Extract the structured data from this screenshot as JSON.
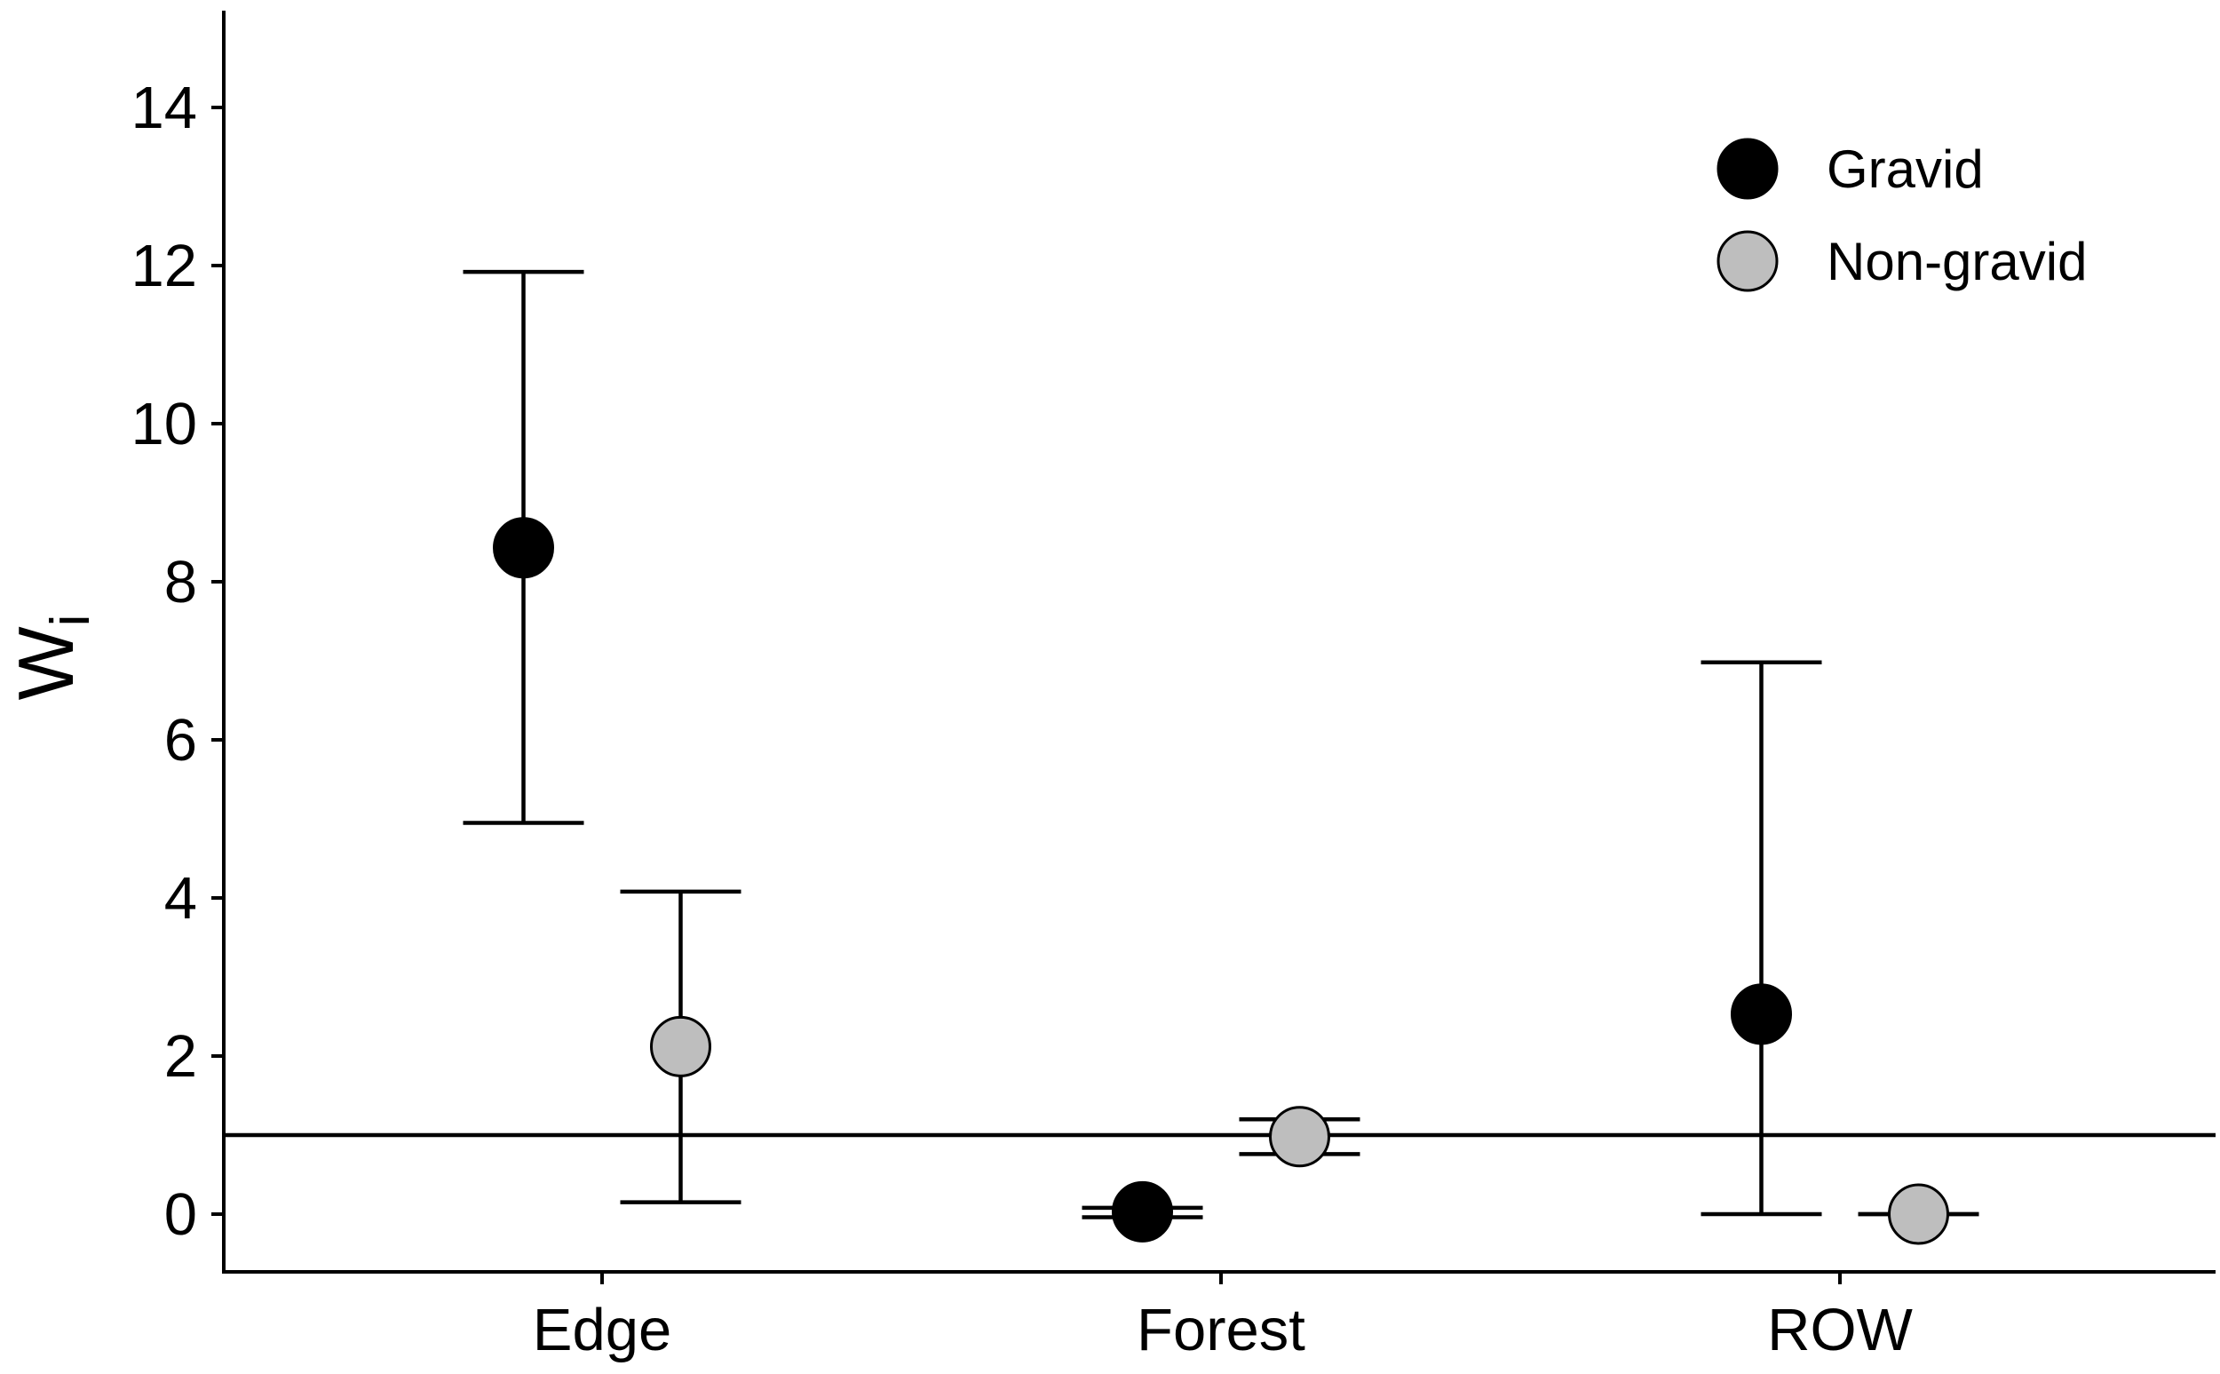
{
  "chart_data": {
    "type": "scatter",
    "title": "",
    "xlabel": "",
    "ylabel": {
      "main": "W",
      "sub": "i"
    },
    "categories": [
      "Edge",
      "Forest",
      "ROW"
    ],
    "ylim": [
      -0.75,
      15.2
    ],
    "yticks": [
      0,
      2,
      4,
      6,
      8,
      10,
      12,
      14
    ],
    "ytick_labels": [
      "0",
      "2",
      "4",
      "6",
      "8",
      "10",
      "12",
      "14"
    ],
    "reference_line": 1,
    "grid": false,
    "legend_position": "top-right",
    "series": [
      {
        "name": "Gravid",
        "color": "#000000",
        "points": [
          {
            "category": "Edge",
            "y": 8.43,
            "lower": 4.95,
            "upper": 11.92
          },
          {
            "category": "Forest",
            "y": 0.03,
            "lower": -0.04,
            "upper": 0.08
          },
          {
            "category": "ROW",
            "y": 2.53,
            "lower": 0.0,
            "upper": 6.98
          }
        ]
      },
      {
        "name": "Non-gravid",
        "color": "#bebebe",
        "points": [
          {
            "category": "Edge",
            "y": 2.12,
            "lower": 0.15,
            "upper": 4.08
          },
          {
            "category": "Forest",
            "y": 0.98,
            "lower": 0.76,
            "upper": 1.2
          },
          {
            "category": "ROW",
            "y": 0.0,
            "lower": 0.0,
            "upper": 0.0
          }
        ]
      }
    ]
  }
}
